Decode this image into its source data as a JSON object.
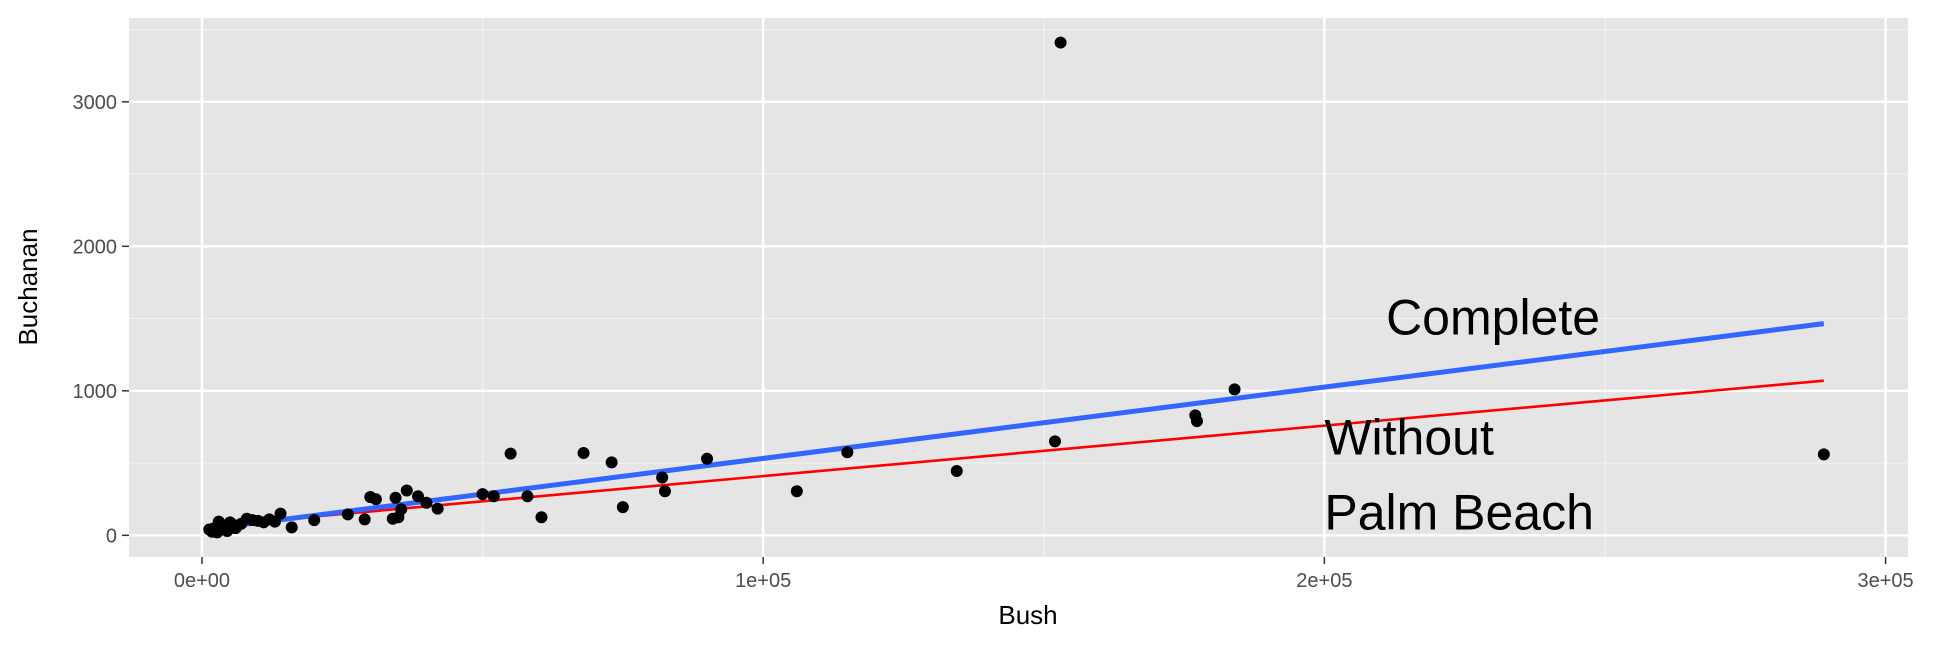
{
  "chart_data": {
    "type": "scatter",
    "xlabel": "Bush",
    "ylabel": "Buchanan",
    "xlim": [
      -13000,
      304000
    ],
    "ylim": [
      -150,
      3580
    ],
    "x_ticks": [
      {
        "value": 0,
        "label": "0e+00"
      },
      {
        "value": 100000,
        "label": "1e+05"
      },
      {
        "value": 200000,
        "label": "2e+05"
      },
      {
        "value": 300000,
        "label": "3e+05"
      }
    ],
    "y_ticks": [
      {
        "value": 0,
        "label": "0"
      },
      {
        "value": 1000,
        "label": "1000"
      },
      {
        "value": 2000,
        "label": "2000"
      },
      {
        "value": 3000,
        "label": "3000"
      }
    ],
    "grid": true,
    "background": "#e5e5e5",
    "points": [
      [
        1300,
        40
      ],
      [
        1800,
        25
      ],
      [
        2200,
        50
      ],
      [
        2700,
        20
      ],
      [
        3000,
        95
      ],
      [
        3500,
        40
      ],
      [
        4000,
        60
      ],
      [
        4500,
        30
      ],
      [
        5000,
        90
      ],
      [
        5500,
        75
      ],
      [
        6000,
        50
      ],
      [
        7000,
        80
      ],
      [
        8000,
        115
      ],
      [
        9000,
        105
      ],
      [
        10000,
        100
      ],
      [
        11000,
        90
      ],
      [
        12000,
        110
      ],
      [
        13000,
        95
      ],
      [
        14000,
        150
      ],
      [
        16000,
        55
      ],
      [
        20000,
        105
      ],
      [
        26000,
        145
      ],
      [
        29000,
        110
      ],
      [
        30000,
        265
      ],
      [
        31000,
        250
      ],
      [
        34000,
        115
      ],
      [
        34500,
        260
      ],
      [
        35000,
        125
      ],
      [
        35500,
        180
      ],
      [
        36500,
        310
      ],
      [
        38500,
        270
      ],
      [
        40000,
        225
      ],
      [
        42000,
        185
      ],
      [
        50000,
        285
      ],
      [
        52000,
        270
      ],
      [
        55000,
        565
      ],
      [
        58000,
        270
      ],
      [
        60500,
        125
      ],
      [
        68000,
        570
      ],
      [
        73000,
        505
      ],
      [
        75000,
        195
      ],
      [
        82000,
        400
      ],
      [
        82500,
        305
      ],
      [
        90000,
        530
      ],
      [
        106000,
        305
      ],
      [
        115000,
        575
      ],
      [
        134500,
        445
      ],
      [
        152000,
        650
      ],
      [
        153000,
        3410
      ],
      [
        177000,
        830
      ],
      [
        177300,
        790
      ],
      [
        184000,
        1010
      ],
      [
        289000,
        560
      ]
    ],
    "series": [
      {
        "name": "Complete",
        "color": "#3366ff",
        "x": [
          1300,
          289000
        ],
        "y": [
          45,
          1465
        ]
      },
      {
        "name": "Without Palm Beach",
        "color": "#ff0000",
        "x": [
          1300,
          289000
        ],
        "y": [
          65,
          1070
        ]
      }
    ],
    "annotations": [
      {
        "text": "Complete",
        "x": 211000,
        "y": 1390
      },
      {
        "text": "Without",
        "x": 200000,
        "y": 560
      },
      {
        "text": "Palm Beach",
        "x": 200000,
        "y": 40
      }
    ]
  }
}
